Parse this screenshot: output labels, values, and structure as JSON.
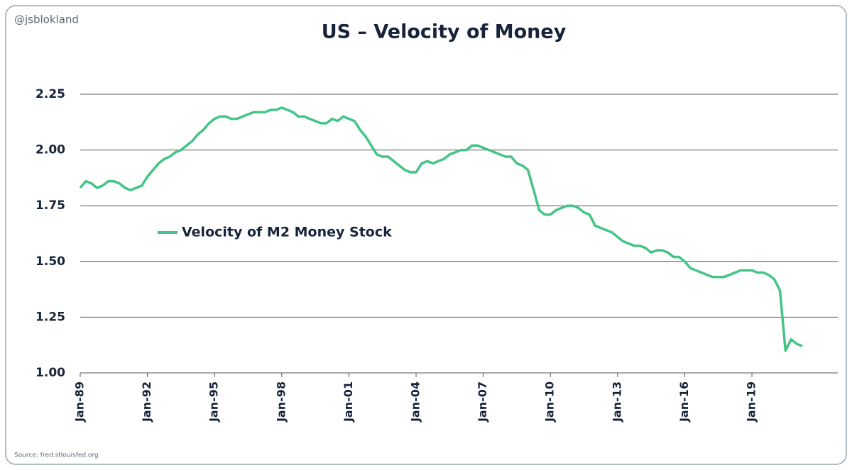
{
  "chart_data": {
    "type": "line",
    "title": "US – Velocity of Money",
    "annotations": [
      "@jsblokland",
      "Source: fred.stlouisfed.org"
    ],
    "categories": [
      "Jan-89",
      null,
      null,
      null,
      null,
      null,
      null,
      null,
      null,
      null,
      null,
      null,
      "Jan-92",
      null,
      null,
      null,
      null,
      null,
      null,
      null,
      null,
      null,
      null,
      null,
      "Jan-95",
      null,
      null,
      null,
      null,
      null,
      null,
      null,
      null,
      null,
      null,
      null,
      "Jan-98",
      null,
      null,
      null,
      null,
      null,
      null,
      null,
      null,
      null,
      null,
      null,
      "Jan-01",
      null,
      null,
      null,
      null,
      null,
      null,
      null,
      null,
      null,
      null,
      null,
      "Jan-04",
      null,
      null,
      null,
      null,
      null,
      null,
      null,
      null,
      null,
      null,
      null,
      "Jan-07",
      null,
      null,
      null,
      null,
      null,
      null,
      null,
      null,
      null,
      null,
      null,
      "Jan-10",
      null,
      null,
      null,
      null,
      null,
      null,
      null,
      null,
      null,
      null,
      null,
      "Jan-13",
      null,
      null,
      null,
      null,
      null,
      null,
      null,
      null,
      null,
      null,
      null,
      "Jan-16",
      null,
      null,
      null,
      null,
      null,
      null,
      null,
      null,
      null,
      null,
      null,
      "Jan-19",
      null,
      null,
      null,
      null,
      null,
      null,
      null,
      null,
      null
    ],
    "series": [
      {
        "name": "Velocity of M2 Money Stock",
        "color": "#45c487",
        "values": [
          1.83,
          1.86,
          1.85,
          1.83,
          1.84,
          1.86,
          1.86,
          1.85,
          1.83,
          1.82,
          1.83,
          1.84,
          1.88,
          1.91,
          1.94,
          1.96,
          1.97,
          1.99,
          2.0,
          2.02,
          2.04,
          2.07,
          2.09,
          2.12,
          2.14,
          2.15,
          2.15,
          2.14,
          2.14,
          2.15,
          2.16,
          2.17,
          2.17,
          2.17,
          2.18,
          2.18,
          2.19,
          2.18,
          2.17,
          2.15,
          2.15,
          2.14,
          2.13,
          2.12,
          2.12,
          2.14,
          2.13,
          2.15,
          2.14,
          2.13,
          2.09,
          2.06,
          2.02,
          1.98,
          1.97,
          1.97,
          1.95,
          1.93,
          1.91,
          1.9,
          1.9,
          1.94,
          1.95,
          1.94,
          1.95,
          1.96,
          1.98,
          1.99,
          2.0,
          2.0,
          2.02,
          2.02,
          2.01,
          2.0,
          1.99,
          1.98,
          1.97,
          1.97,
          1.94,
          1.93,
          1.91,
          1.82,
          1.73,
          1.71,
          1.71,
          1.73,
          1.74,
          1.75,
          1.75,
          1.74,
          1.72,
          1.71,
          1.66,
          1.65,
          1.64,
          1.63,
          1.61,
          1.59,
          1.58,
          1.57,
          1.57,
          1.56,
          1.54,
          1.55,
          1.55,
          1.54,
          1.52,
          1.52,
          1.5,
          1.47,
          1.46,
          1.45,
          1.44,
          1.43,
          1.43,
          1.43,
          1.44,
          1.45,
          1.46,
          1.46,
          1.46,
          1.45,
          1.45,
          1.44,
          1.42,
          1.37,
          1.1,
          1.15,
          1.13,
          1.12
        ]
      }
    ],
    "ylim": [
      1,
      2.25
    ],
    "yticks": [
      {
        "value": 1,
        "label": "1.00"
      },
      1.25,
      {
        "value": 1.5,
        "label": "1.50"
      },
      1.75,
      {
        "value": 2,
        "label": "2.00"
      },
      2.25
    ],
    "grid": true
  }
}
